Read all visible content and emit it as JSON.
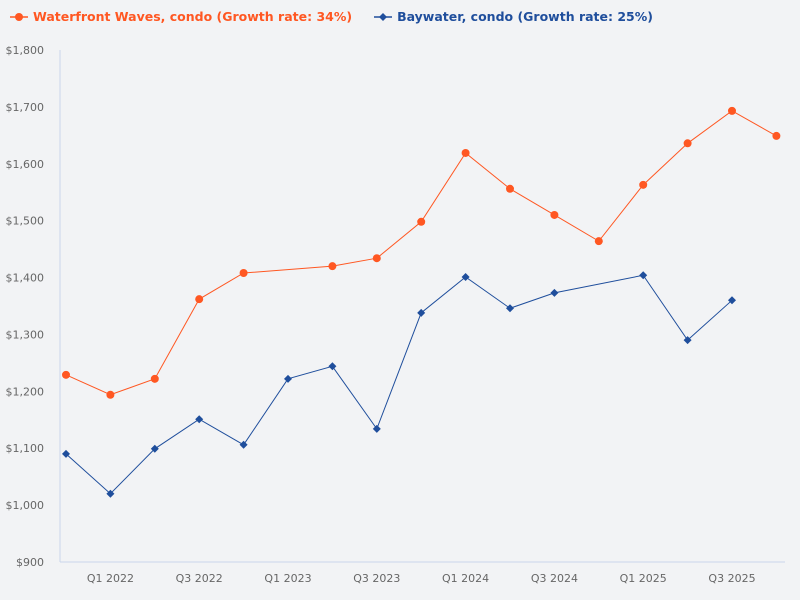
{
  "chart_data": {
    "type": "line",
    "categories": [
      "",
      "Q1 2022",
      "",
      "Q3 2022",
      "",
      "Q1 2023",
      "",
      "Q3 2023",
      "",
      "Q1 2024",
      "",
      "Q3 2024",
      "",
      "Q1 2025",
      "",
      "Q3 2025",
      ""
    ],
    "series": [
      {
        "name": "Waterfront Waves, condo (Growth rate: 34%)",
        "color": "#ff5722",
        "marker": "circle",
        "values": [
          1229,
          1194,
          1222,
          1362,
          1408,
          null,
          1420,
          1434,
          1498,
          1619,
          1556,
          1510,
          1464,
          1563,
          1636,
          1693,
          1649
        ]
      },
      {
        "name": "Baywater, condo (Growth rate: 25%)",
        "color": "#1f4e9c",
        "marker": "diamond",
        "values": [
          1090,
          1020,
          1099,
          1151,
          1106,
          1222,
          1244,
          1134,
          1338,
          1401,
          1346,
          1373,
          null,
          1404,
          1290,
          1360,
          null
        ]
      }
    ],
    "yticks": [
      "$900",
      "$1,000",
      "$1,100",
      "$1,200",
      "$1,300",
      "$1,400",
      "$1,500",
      "$1,600",
      "$1,700",
      "$1,800"
    ],
    "ylim": [
      900,
      1800
    ],
    "grid": false,
    "legend": "top-left",
    "xlabel": "",
    "ylabel": ""
  }
}
